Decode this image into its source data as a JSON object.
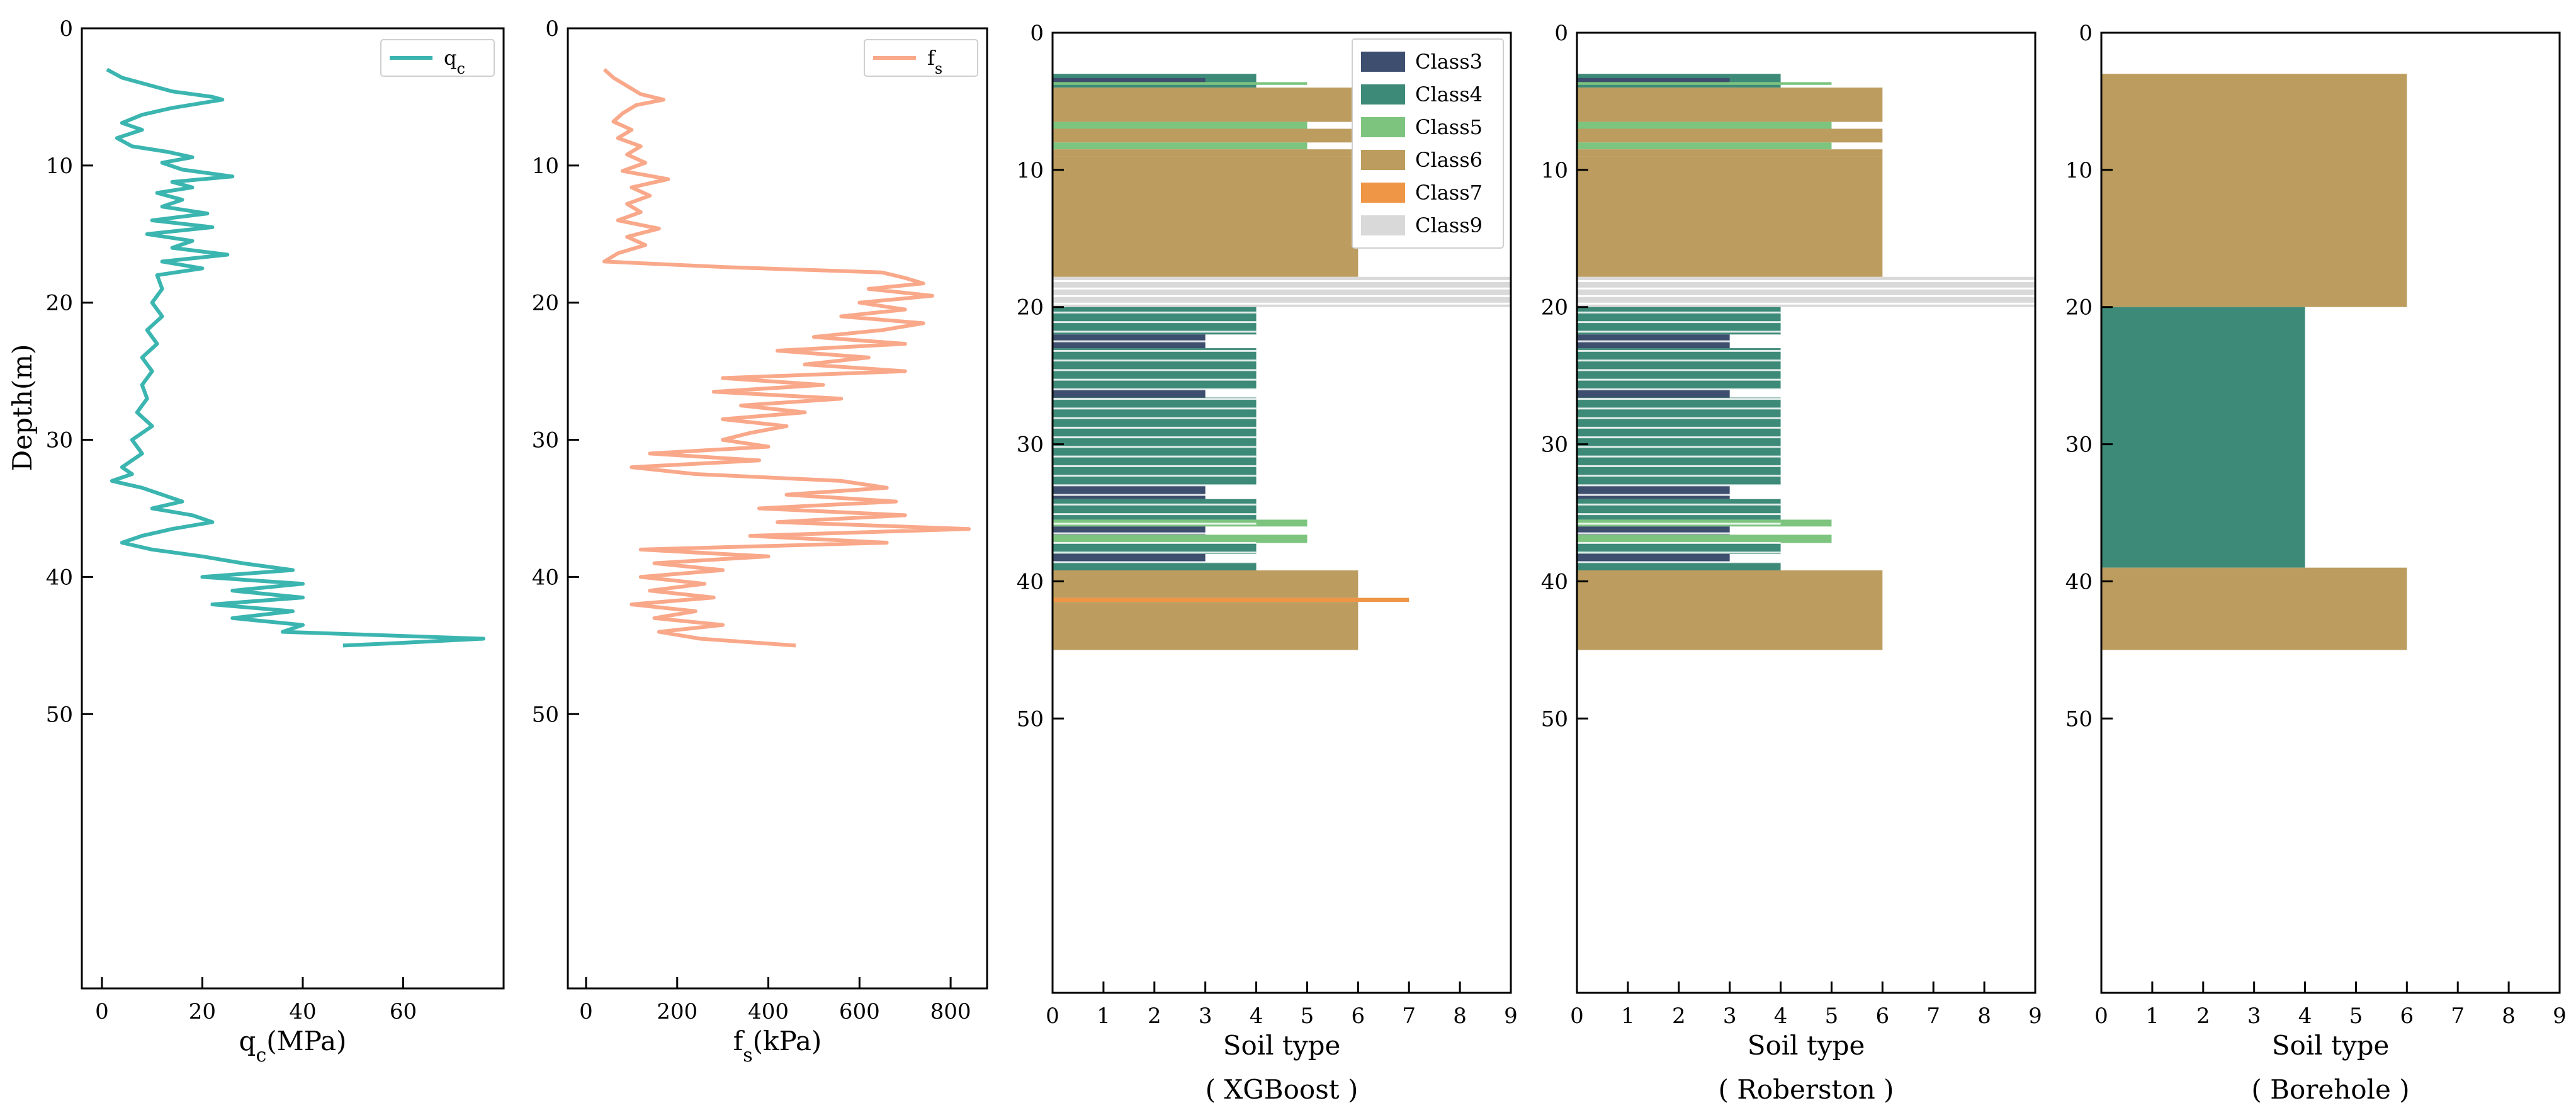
{
  "chart_data": [
    {
      "type": "line",
      "panel": "qc",
      "xlabel": "q_c(MPa)",
      "xlabel_main": "q",
      "xlabel_sub": "c",
      "xlabel_unit": "(MPa)",
      "ylabel": "Depth(m)",
      "legend": {
        "main": "q",
        "sub": "c",
        "placement": "top-right"
      },
      "xlim": [
        -4,
        80
      ],
      "ylim": [
        70,
        0
      ],
      "xticks": [
        "0",
        "20",
        "40",
        "60"
      ],
      "xtick_values": [
        0,
        20,
        40,
        60
      ],
      "yticks": [
        "0",
        "10",
        "20",
        "30",
        "40",
        "50"
      ],
      "ytick_values": [
        0,
        10,
        20,
        30,
        40,
        50
      ],
      "color": "#3BB5B0",
      "series": [
        {
          "name": "q_c",
          "depth": [
            3,
            3.6,
            4.2,
            4.6,
            5.0,
            5.2,
            5.8,
            6.3,
            6.9,
            7.4,
            8.0,
            8.6,
            9.0,
            9.4,
            9.8,
            10.3,
            10.8,
            11.2,
            11.6,
            12.0,
            12.5,
            13.0,
            13.5,
            14.0,
            14.5,
            15.0,
            15.5,
            16.0,
            16.5,
            17.0,
            17.5,
            18.0,
            19,
            20,
            21,
            22,
            23,
            24,
            25,
            26,
            27,
            28,
            29,
            30,
            31,
            32,
            32.5,
            33,
            33.5,
            34,
            34.5,
            35,
            35.5,
            36,
            36.5,
            37,
            37.5,
            38,
            38.5,
            39,
            39.5,
            40,
            40.5,
            41,
            41.5,
            42,
            42.5,
            43,
            43.5,
            44,
            44.5,
            44.8,
            45.0
          ],
          "values": [
            1,
            4,
            10,
            14,
            22,
            24,
            14,
            8,
            4,
            8,
            3,
            6,
            13,
            18,
            12,
            16,
            26,
            14,
            18,
            11,
            16,
            12,
            21,
            10,
            22,
            9,
            18,
            14,
            25,
            12,
            20,
            11,
            12,
            10,
            12,
            9,
            11,
            8,
            10,
            8,
            9,
            7,
            10,
            6,
            8,
            4,
            6,
            2,
            8,
            12,
            16,
            10,
            18,
            22,
            14,
            8,
            4,
            10,
            20,
            28,
            38,
            20,
            40,
            26,
            40,
            22,
            38,
            26,
            40,
            36,
            76,
            60,
            48
          ]
        }
      ]
    },
    {
      "type": "line",
      "panel": "fs",
      "xlabel": "f_s(kPa)",
      "xlabel_main": "f",
      "xlabel_sub": "s",
      "xlabel_unit": "(kPa)",
      "legend": {
        "main": "f",
        "sub": "s",
        "placement": "top-right"
      },
      "xlim": [
        -40,
        880
      ],
      "ylim": [
        70,
        0
      ],
      "xticks": [
        "0",
        "200",
        "400",
        "600",
        "800"
      ],
      "xtick_values": [
        0,
        200,
        400,
        600,
        800
      ],
      "yticks": [
        "0",
        "10",
        "20",
        "30",
        "40",
        "50"
      ],
      "ytick_values": [
        0,
        10,
        20,
        30,
        40,
        50
      ],
      "color": "#F9A88A",
      "series": [
        {
          "name": "f_s",
          "depth": [
            3,
            3.6,
            4.2,
            4.8,
            5.2,
            5.6,
            6.2,
            6.8,
            7.4,
            8.0,
            8.6,
            9.2,
            9.8,
            10.4,
            11.0,
            11.6,
            12.2,
            12.8,
            13.4,
            14.0,
            14.6,
            15.2,
            15.8,
            16.4,
            17.0,
            17.4,
            17.8,
            18.2,
            18.6,
            19.0,
            19.5,
            20,
            20.5,
            21,
            21.5,
            22,
            22.5,
            23,
            23.5,
            24,
            24.5,
            25,
            25.5,
            26,
            26.5,
            27,
            27.5,
            28,
            28.5,
            29,
            29.5,
            30,
            30.5,
            31,
            31.5,
            32,
            32.5,
            33,
            33.5,
            34,
            34.5,
            35,
            35.5,
            36,
            36.5,
            37,
            37.5,
            38,
            38.5,
            39,
            39.5,
            40,
            40.5,
            41,
            41.5,
            42,
            42.5,
            43,
            43.5,
            44,
            44.5,
            45
          ],
          "values": [
            40,
            60,
            90,
            120,
            170,
            110,
            80,
            60,
            100,
            70,
            120,
            90,
            130,
            80,
            180,
            100,
            140,
            90,
            120,
            70,
            160,
            90,
            130,
            70,
            40,
            300,
            650,
            700,
            740,
            620,
            760,
            600,
            700,
            560,
            740,
            650,
            500,
            700,
            420,
            620,
            480,
            700,
            300,
            520,
            280,
            560,
            340,
            480,
            300,
            440,
            360,
            300,
            400,
            140,
            380,
            100,
            240,
            560,
            660,
            440,
            680,
            380,
            700,
            420,
            840,
            360,
            660,
            120,
            400,
            150,
            300,
            120,
            260,
            140,
            280,
            100,
            240,
            150,
            300,
            160,
            250,
            460
          ]
        }
      ]
    },
    {
      "type": "bar",
      "orientation": "horizontal",
      "panel": "XGBoost",
      "xlabel": "Soil type",
      "caption": "( XGBoost )",
      "xlim": [
        0,
        9
      ],
      "ylim": [
        70,
        0
      ],
      "xticks": [
        "0",
        "1",
        "2",
        "3",
        "4",
        "5",
        "6",
        "7",
        "8",
        "9"
      ],
      "xtick_values": [
        0,
        1,
        2,
        3,
        4,
        5,
        6,
        7,
        8,
        9
      ],
      "yticks": [
        "0",
        "10",
        "20",
        "30",
        "40",
        "50"
      ],
      "ytick_values": [
        0,
        10,
        20,
        30,
        40,
        50
      ],
      "legend": {
        "placement": "top-right",
        "entries": [
          {
            "label": "Class3",
            "color": "#3D4E6E"
          },
          {
            "label": "Class4",
            "color": "#3D8A78"
          },
          {
            "label": "Class5",
            "color": "#7DC47F"
          },
          {
            "label": "Class6",
            "color": "#BC9D5F"
          },
          {
            "label": "Class7",
            "color": "#EE9546"
          },
          {
            "label": "Class9",
            "color": "#D9D9D9"
          }
        ]
      },
      "colors": {
        "3": "#3D4E6E",
        "4": "#3D8A78",
        "5": "#7DC47F",
        "6": "#BC9D5F",
        "7": "#EE9546",
        "9": "#D9D9D9"
      },
      "layers": [
        {
          "top": 3.0,
          "bottom": 4.0,
          "class": 4
        },
        {
          "top": 3.3,
          "bottom": 3.6,
          "class": 3
        },
        {
          "top": 3.6,
          "bottom": 3.8,
          "class": 5
        },
        {
          "top": 4.0,
          "bottom": 6.5,
          "class": 6
        },
        {
          "top": 6.5,
          "bottom": 7.0,
          "class": 5
        },
        {
          "top": 7.0,
          "bottom": 8.0,
          "class": 6
        },
        {
          "top": 8.0,
          "bottom": 8.5,
          "class": 5
        },
        {
          "top": 8.5,
          "bottom": 9.0,
          "class": 6
        },
        {
          "top": 9.0,
          "bottom": 17.8,
          "class": 6
        },
        {
          "top": 17.8,
          "bottom": 20.0,
          "class": 9
        },
        {
          "top": 20.0,
          "bottom": 22.0,
          "class": 4
        },
        {
          "top": 22.0,
          "bottom": 23.0,
          "class": 3
        },
        {
          "top": 23.0,
          "bottom": 26.0,
          "class": 4
        },
        {
          "top": 26.0,
          "bottom": 26.6,
          "class": 3
        },
        {
          "top": 26.6,
          "bottom": 33.0,
          "class": 4
        },
        {
          "top": 33.0,
          "bottom": 34.0,
          "class": 3
        },
        {
          "top": 34.0,
          "bottom": 35.5,
          "class": 4
        },
        {
          "top": 35.5,
          "bottom": 36.0,
          "class": 5
        },
        {
          "top": 36.0,
          "bottom": 36.6,
          "class": 3
        },
        {
          "top": 36.6,
          "bottom": 37.2,
          "class": 5
        },
        {
          "top": 37.2,
          "bottom": 38.0,
          "class": 4
        },
        {
          "top": 38.0,
          "bottom": 38.6,
          "class": 3
        },
        {
          "top": 38.6,
          "bottom": 39.2,
          "class": 4
        },
        {
          "top": 39.2,
          "bottom": 41.2,
          "class": 6
        },
        {
          "top": 41.2,
          "bottom": 41.5,
          "class": 7
        },
        {
          "top": 41.5,
          "bottom": 45.0,
          "class": 6
        }
      ]
    },
    {
      "type": "bar",
      "orientation": "horizontal",
      "panel": "Roberston",
      "xlabel": "Soil type",
      "caption": "( Roberston )",
      "xlim": [
        0,
        9
      ],
      "ylim": [
        70,
        0
      ],
      "xticks": [
        "0",
        "1",
        "2",
        "3",
        "4",
        "5",
        "6",
        "7",
        "8",
        "9"
      ],
      "xtick_values": [
        0,
        1,
        2,
        3,
        4,
        5,
        6,
        7,
        8,
        9
      ],
      "yticks": [
        "0",
        "10",
        "20",
        "30",
        "40",
        "50"
      ],
      "ytick_values": [
        0,
        10,
        20,
        30,
        40,
        50
      ],
      "colors": {
        "3": "#3D4E6E",
        "4": "#3D8A78",
        "5": "#7DC47F",
        "6": "#BC9D5F",
        "7": "#EE9546",
        "9": "#D9D9D9"
      },
      "layers": [
        {
          "top": 3.0,
          "bottom": 4.0,
          "class": 4
        },
        {
          "top": 3.3,
          "bottom": 3.6,
          "class": 3
        },
        {
          "top": 3.6,
          "bottom": 3.8,
          "class": 5
        },
        {
          "top": 4.0,
          "bottom": 6.5,
          "class": 6
        },
        {
          "top": 6.5,
          "bottom": 7.0,
          "class": 5
        },
        {
          "top": 7.0,
          "bottom": 8.0,
          "class": 6
        },
        {
          "top": 8.0,
          "bottom": 8.5,
          "class": 5
        },
        {
          "top": 8.5,
          "bottom": 9.0,
          "class": 6
        },
        {
          "top": 9.0,
          "bottom": 17.8,
          "class": 6
        },
        {
          "top": 17.8,
          "bottom": 20.0,
          "class": 9
        },
        {
          "top": 20.0,
          "bottom": 22.0,
          "class": 4
        },
        {
          "top": 22.0,
          "bottom": 23.0,
          "class": 3
        },
        {
          "top": 23.0,
          "bottom": 26.0,
          "class": 4
        },
        {
          "top": 26.0,
          "bottom": 26.6,
          "class": 3
        },
        {
          "top": 26.6,
          "bottom": 33.0,
          "class": 4
        },
        {
          "top": 33.0,
          "bottom": 34.0,
          "class": 3
        },
        {
          "top": 34.0,
          "bottom": 35.5,
          "class": 4
        },
        {
          "top": 35.5,
          "bottom": 36.0,
          "class": 5
        },
        {
          "top": 36.0,
          "bottom": 36.6,
          "class": 3
        },
        {
          "top": 36.6,
          "bottom": 37.2,
          "class": 5
        },
        {
          "top": 37.2,
          "bottom": 38.0,
          "class": 4
        },
        {
          "top": 38.0,
          "bottom": 38.6,
          "class": 3
        },
        {
          "top": 38.6,
          "bottom": 39.2,
          "class": 4
        },
        {
          "top": 39.2,
          "bottom": 45.0,
          "class": 6
        }
      ]
    },
    {
      "type": "bar",
      "orientation": "horizontal",
      "panel": "Borehole",
      "xlabel": "Soil type",
      "caption": "( Borehole )",
      "xlim": [
        0,
        9
      ],
      "ylim": [
        70,
        0
      ],
      "xticks": [
        "0",
        "1",
        "2",
        "3",
        "4",
        "5",
        "6",
        "7",
        "8",
        "9"
      ],
      "xtick_values": [
        0,
        1,
        2,
        3,
        4,
        5,
        6,
        7,
        8,
        9
      ],
      "yticks": [
        "0",
        "10",
        "20",
        "30",
        "40",
        "50"
      ],
      "ytick_values": [
        0,
        10,
        20,
        30,
        40,
        50
      ],
      "colors": {
        "4": "#3D8A78",
        "6": "#BC9D5F"
      },
      "layers": [
        {
          "top": 3.0,
          "bottom": 20.0,
          "class": 6
        },
        {
          "top": 20.0,
          "bottom": 39.0,
          "class": 4
        },
        {
          "top": 39.0,
          "bottom": 45.0,
          "class": 6
        }
      ]
    }
  ]
}
